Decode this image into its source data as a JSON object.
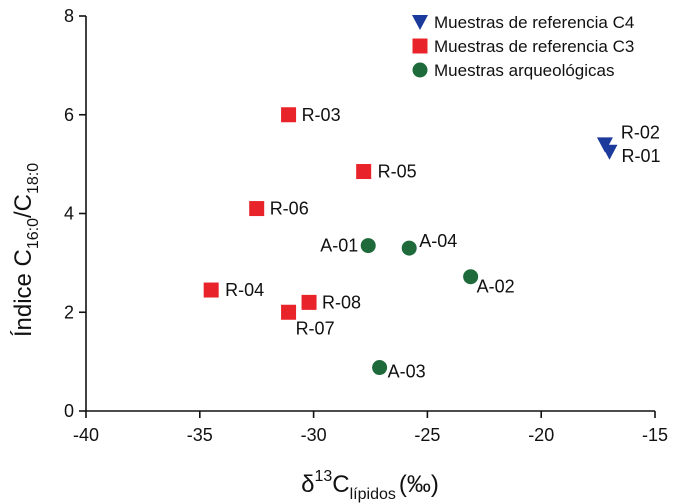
{
  "chart_data": {
    "type": "scatter",
    "xlabel": "δ13Clípidos (‰)",
    "xlabel_parts": {
      "symbol": "δ",
      "sup": "13",
      "base": "C",
      "sub": "lípidos",
      "unit": "(‰)"
    },
    "ylabel": "Índice C16:0/C18:0",
    "ylabel_parts": {
      "prefix": "Índice C",
      "sub1": "16:0",
      "mid": "/C",
      "sub2": "18:0"
    },
    "xlim": [
      -40,
      -15
    ],
    "ylim": [
      0,
      8
    ],
    "xticks": [
      -40,
      -35,
      -30,
      -25,
      -20,
      -15
    ],
    "yticks": [
      0,
      2,
      4,
      6,
      8
    ],
    "legend_position": "top-right",
    "grid": false,
    "series": [
      {
        "name": "Muestras de referencia C4",
        "marker": "triangle-down",
        "color": "#1c3a9c",
        "points": [
          {
            "label": "R-02",
            "x": -17.2,
            "y": 5.4
          },
          {
            "label": "R-01",
            "x": -17.0,
            "y": 5.25
          }
        ]
      },
      {
        "name": "Muestras de referencia C3",
        "marker": "square",
        "color": "#e8242a",
        "points": [
          {
            "label": "R-03",
            "x": -31.1,
            "y": 6.0
          },
          {
            "label": "R-05",
            "x": -27.8,
            "y": 4.85
          },
          {
            "label": "R-06",
            "x": -32.5,
            "y": 4.1
          },
          {
            "label": "R-04",
            "x": -34.5,
            "y": 2.45
          },
          {
            "label": "R-08",
            "x": -30.2,
            "y": 2.2
          },
          {
            "label": "R-07",
            "x": -31.1,
            "y": 2.0
          }
        ]
      },
      {
        "name": "Muestras arqueológicas",
        "marker": "circle",
        "color": "#1e6a3a",
        "points": [
          {
            "label": "A-01",
            "x": -27.6,
            "y": 3.35
          },
          {
            "label": "A-04",
            "x": -25.8,
            "y": 3.3
          },
          {
            "label": "A-02",
            "x": -23.1,
            "y": 2.72
          },
          {
            "label": "A-03",
            "x": -27.1,
            "y": 0.88
          }
        ]
      }
    ]
  }
}
